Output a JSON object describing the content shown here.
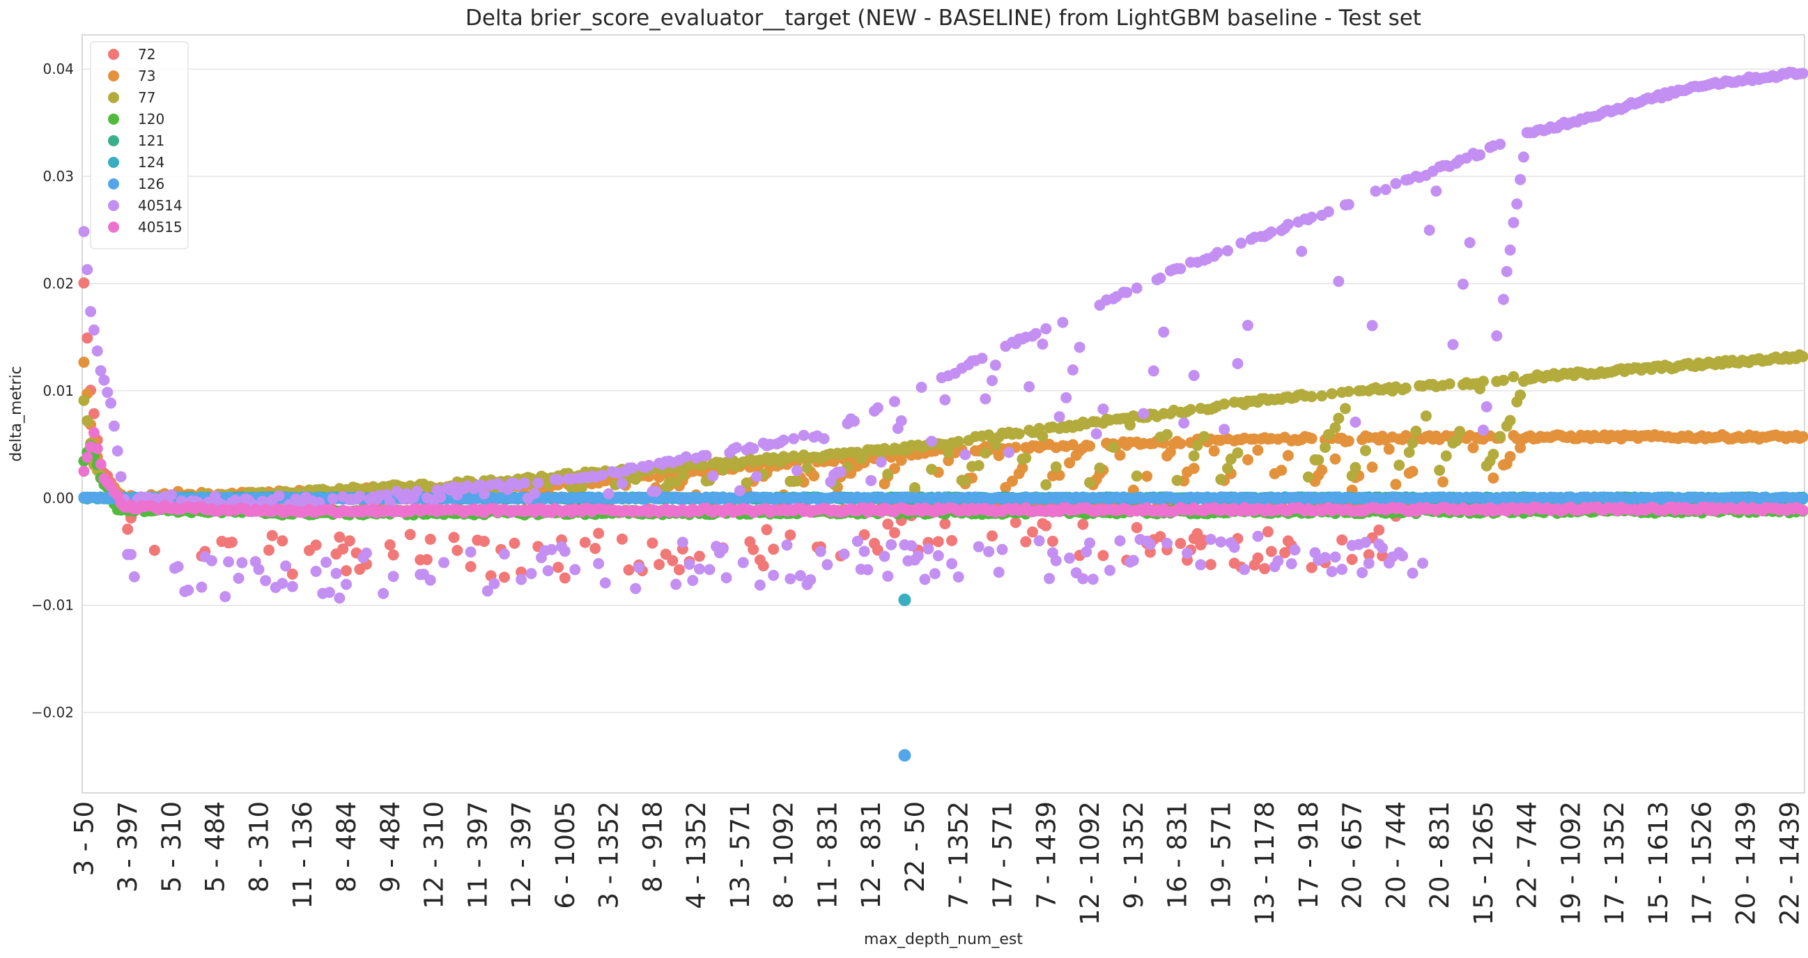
{
  "chart_data": {
    "type": "scatter",
    "title": "Delta brier_score_evaluator__target (NEW - BASELINE) from LightGBM baseline - Test set",
    "xlabel": "max_depth_num_est",
    "ylabel": "delta_metric",
    "ylim": [
      -0.0275,
      0.0432
    ],
    "yticks": [
      -0.02,
      -0.01,
      0.0,
      0.01,
      0.02,
      0.03,
      0.04
    ],
    "ytick_labels": [
      "−0.02",
      "−0.01",
      "0.00",
      "0.01",
      "0.02",
      "0.03",
      "0.04"
    ],
    "grid": "horizontal",
    "legend_position": "top-left",
    "x_tick_labels": [
      "3 - 50",
      "3 - 397",
      "5 - 310",
      "5 - 484",
      "8 - 310",
      "11 - 136",
      "8 - 484",
      "9 - 484",
      "12 - 310",
      "11 - 397",
      "12 - 397",
      "6 - 1005",
      "3 - 1352",
      "8 - 918",
      "4 - 1352",
      "13 - 571",
      "8 - 1092",
      "11 - 831",
      "12 - 831",
      "22 - 50",
      "7 - 1352",
      "17 - 571",
      "7 - 1439",
      "12 - 1092",
      "9 - 1352",
      "16 - 831",
      "19 - 571",
      "13 - 1178",
      "17 - 918",
      "20 - 657",
      "20 - 744",
      "20 - 831",
      "15 - 1265",
      "22 - 744",
      "19 - 1092",
      "17 - 1352",
      "15 - 1613",
      "17 - 1526",
      "20 - 1439",
      "22 - 1439"
    ],
    "series": [
      {
        "name": "72",
        "color": "#f27777",
        "trend": [
          [
            0,
            0.02
          ],
          [
            2,
            0.01
          ],
          [
            5,
            0.003
          ],
          [
            12,
            -0.0008
          ],
          [
            60,
            -0.0012
          ],
          [
            200,
            -0.0012
          ],
          [
            400,
            -0.0004
          ],
          [
            511,
            -0.0002
          ]
        ],
        "scatter_low": [
          [
            10,
            -0.003
          ],
          [
            60,
            -0.005
          ],
          [
            120,
            -0.0055
          ],
          [
            180,
            -0.005
          ],
          [
            240,
            -0.0035
          ],
          [
            270,
            -0.003
          ],
          [
            320,
            -0.004
          ],
          [
            365,
            -0.005
          ],
          [
            395,
            -0.003
          ]
        ]
      },
      {
        "name": "73",
        "color": "#e3913a",
        "trend": [
          [
            0,
            0.0125
          ],
          [
            2,
            0.007
          ],
          [
            5,
            0.002
          ],
          [
            12,
            0.0
          ],
          [
            60,
            0.0005
          ],
          [
            150,
            0.0015
          ],
          [
            200,
            0.003
          ],
          [
            260,
            0.0045
          ],
          [
            300,
            0.005
          ],
          [
            350,
            0.0055
          ],
          [
            420,
            0.0057
          ],
          [
            511,
            0.0057
          ]
        ]
      },
      {
        "name": "77",
        "color": "#b3ab3c",
        "trend": [
          [
            0,
            0.009
          ],
          [
            3,
            0.003
          ],
          [
            8,
            0.0005
          ],
          [
            12,
            -0.0005
          ],
          [
            60,
            0.0005
          ],
          [
            120,
            0.0015
          ],
          [
            180,
            0.003
          ],
          [
            240,
            0.0045
          ],
          [
            300,
            0.007
          ],
          [
            360,
            0.0095
          ],
          [
            420,
            0.011
          ],
          [
            470,
            0.0122
          ],
          [
            511,
            0.0132
          ]
        ]
      },
      {
        "name": "120",
        "color": "#4fba3c",
        "trend": [
          [
            0,
            0.0035
          ],
          [
            2,
            0.005
          ],
          [
            5,
            0.002
          ],
          [
            10,
            -0.001
          ],
          [
            60,
            -0.0014
          ],
          [
            300,
            -0.0013
          ],
          [
            511,
            -0.0012
          ]
        ]
      },
      {
        "name": "121",
        "color": "#3aae8a",
        "trend": [
          [
            0,
            0.0
          ],
          [
            511,
            0.0
          ]
        ]
      },
      {
        "name": "124",
        "color": "#38aec0",
        "trend": [
          [
            0,
            0.0
          ],
          [
            511,
            0.0
          ]
        ],
        "outliers": [
          [
            244,
            -0.0095
          ]
        ]
      },
      {
        "name": "126",
        "color": "#52a6e9",
        "trend": [
          [
            0,
            0.0
          ],
          [
            511,
            0.0
          ]
        ],
        "outliers": [
          [
            244,
            -0.024
          ]
        ]
      },
      {
        "name": "40514",
        "color": "#c38ff2",
        "trend": [
          [
            0,
            0.025
          ],
          [
            2,
            0.0175
          ],
          [
            5,
            0.012
          ],
          [
            8,
            0.0087
          ],
          [
            12,
            0.0
          ],
          [
            60,
            -0.0005
          ],
          [
            150,
            0.002
          ],
          [
            220,
            0.006
          ],
          [
            280,
            0.015
          ],
          [
            330,
            0.022
          ],
          [
            380,
            0.028
          ],
          [
            430,
            0.034
          ],
          [
            480,
            0.0385
          ],
          [
            511,
            0.0397
          ]
        ],
        "scatter_low": [
          [
            20,
            -0.007
          ],
          [
            60,
            -0.0075
          ],
          [
            100,
            -0.0072
          ],
          [
            150,
            -0.0065
          ],
          [
            200,
            -0.006
          ],
          [
            244,
            -0.006
          ],
          [
            280,
            -0.006
          ],
          [
            340,
            -0.005
          ],
          [
            380,
            -0.005
          ]
        ]
      },
      {
        "name": "40515",
        "color": "#ed72cf",
        "trend": [
          [
            0,
            0.0025
          ],
          [
            3,
            0.006
          ],
          [
            6,
            0.002
          ],
          [
            12,
            -0.0008
          ],
          [
            60,
            -0.0012
          ],
          [
            511,
            -0.001
          ]
        ]
      }
    ]
  }
}
